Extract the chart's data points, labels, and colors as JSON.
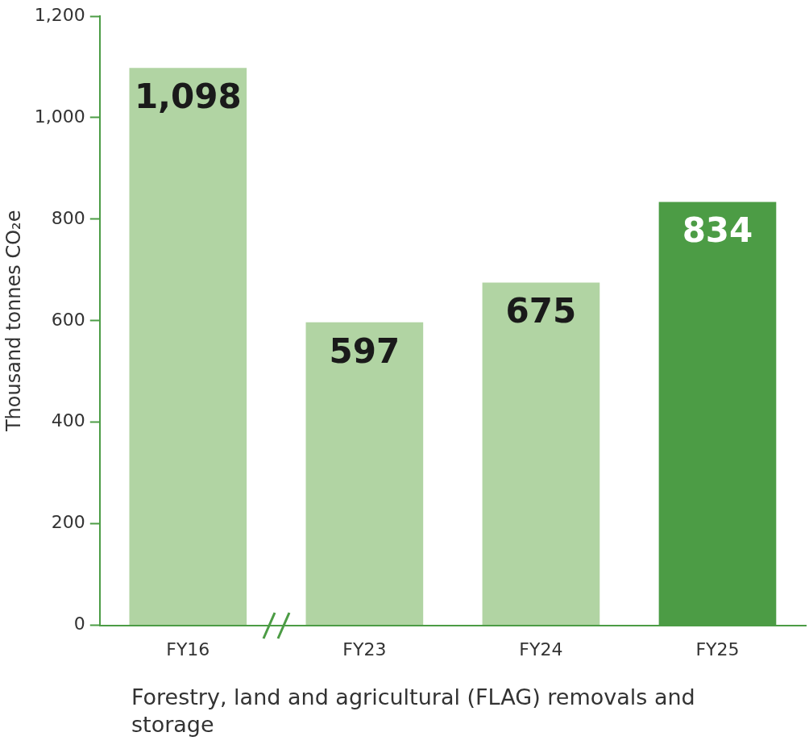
{
  "chart_data": {
    "type": "bar",
    "xlabel": "Forestry, land and agricultural (FLAG) removals and storage",
    "ylabel": "Thousand tonnes CO₂e",
    "categories": [
      "FY16",
      "FY23",
      "FY24",
      "FY25"
    ],
    "values": [
      1098,
      597,
      675,
      834
    ],
    "value_labels": [
      "1,098",
      "597",
      "675",
      "834"
    ],
    "colors": [
      "#b1d4a3",
      "#b1d4a3",
      "#b1d4a3",
      "#4c9c45"
    ],
    "ylim": [
      0,
      1200
    ],
    "yticks": [
      0,
      200,
      400,
      600,
      800,
      {
        "value": 1000,
        "label": "1,000"
      },
      {
        "value": 1200,
        "label": "1,200"
      }
    ],
    "grid": false,
    "legend": false
  }
}
